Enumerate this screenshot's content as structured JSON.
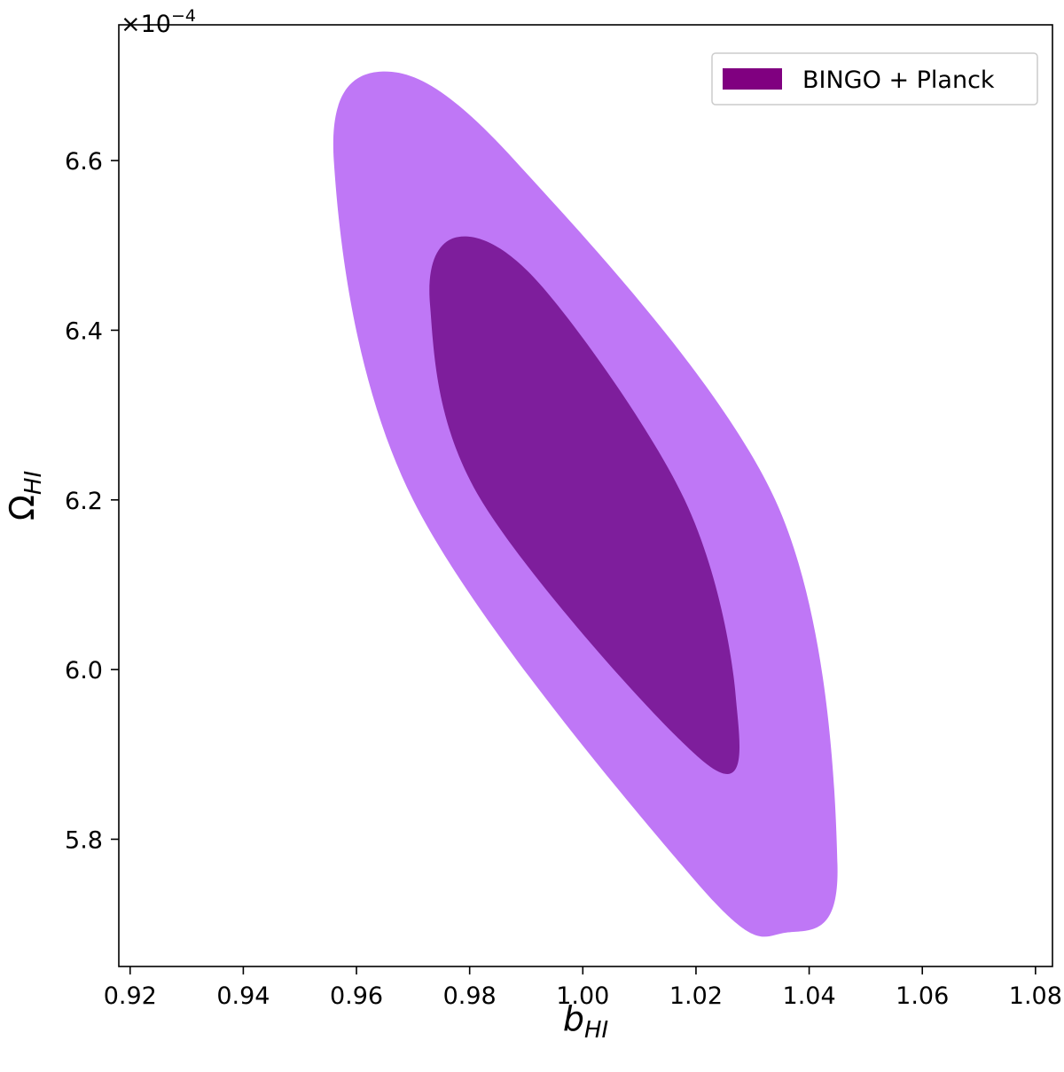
{
  "chart_data": {
    "type": "contour",
    "xlabel": {
      "main": "b",
      "sub": "HI"
    },
    "ylabel": {
      "main": "Ω",
      "sub": "HI"
    },
    "y_offset": {
      "base": "×10",
      "exponent": "−4"
    },
    "xlim": [
      0.918,
      1.083
    ],
    "ylim": [
      5.65,
      6.76
    ],
    "x_ticks": [
      0.92,
      0.94,
      0.96,
      0.98,
      1.0,
      1.02,
      1.04,
      1.06,
      1.08
    ],
    "x_tick_labels": [
      "0.92",
      "0.94",
      "0.96",
      "0.98",
      "1.00",
      "1.02",
      "1.04",
      "1.06",
      "1.08"
    ],
    "y_ticks": [
      5.8,
      6.0,
      6.2,
      6.4,
      6.6
    ],
    "y_tick_labels": [
      "5.8",
      "6.0",
      "6.2",
      "6.4",
      "6.6"
    ],
    "grid": false,
    "legend": {
      "position": "top-right",
      "entries": [
        {
          "label": "BINGO + Planck",
          "color": "#800080"
        }
      ]
    },
    "series": [
      {
        "name": "BINGO + Planck",
        "levels": [
          {
            "level": "2-sigma",
            "color": "#bf77f6",
            "center": [
              1.0,
              6.2
            ],
            "boundary_points": [
              [
                0.965,
                6.705
              ],
              [
                0.956,
                6.6
              ],
              [
                0.97,
                6.2
              ],
              [
                1.02,
                5.75
              ],
              [
                1.036,
                5.69
              ],
              [
                1.045,
                5.77
              ],
              [
                1.034,
                6.2
              ],
              [
                0.988,
                6.6
              ]
            ]
          },
          {
            "level": "1-sigma",
            "color": "#7e1e9c",
            "center": [
              1.0,
              6.2
            ],
            "boundary_points": [
              [
                0.978,
                6.51
              ],
              [
                0.973,
                6.43
              ],
              [
                0.982,
                6.2
              ],
              [
                1.022,
                5.888
              ],
              [
                1.027,
                5.97
              ],
              [
                1.018,
                6.2
              ],
              [
                0.993,
                6.45
              ]
            ]
          }
        ]
      }
    ]
  }
}
